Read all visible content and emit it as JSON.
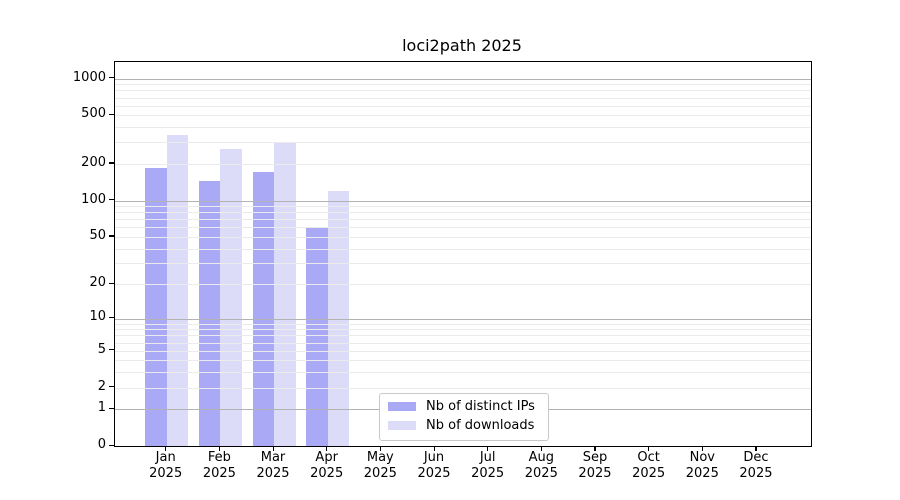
{
  "title": "loci2path 2025",
  "chart_data": {
    "type": "bar",
    "title": "loci2path 2025",
    "categories": [
      "Jan",
      "Feb",
      "Mar",
      "Apr",
      "May",
      "Jun",
      "Jul",
      "Aug",
      "Sep",
      "Oct",
      "Nov",
      "Dec"
    ],
    "category_year": "2025",
    "series": [
      {
        "name": "Nb of distinct IPs",
        "color": "#a9a9f6",
        "values": [
          184,
          145,
          172,
          61,
          0,
          0,
          0,
          0,
          0,
          0,
          0,
          0
        ]
      },
      {
        "name": "Nb of downloads",
        "color": "#dcdcf9",
        "values": [
          348,
          263,
          296,
          120,
          0,
          0,
          0,
          0,
          0,
          0,
          0,
          0
        ]
      }
    ],
    "xlabel": "",
    "ylabel": "",
    "y_scale": "log10(1+v)",
    "y_ticks": [
      0,
      1,
      2,
      5,
      10,
      20,
      50,
      100,
      200,
      500,
      1000
    ],
    "y_major_gridlines": [
      1,
      10,
      100,
      1000
    ],
    "y_minor_gridlines": [
      2,
      3,
      4,
      5,
      6,
      7,
      8,
      9,
      20,
      30,
      40,
      50,
      60,
      70,
      80,
      90,
      200,
      300,
      400,
      500,
      600,
      700,
      800,
      900
    ],
    "ylim": [
      0,
      1380
    ],
    "grid": "on",
    "legend_position": "lower center"
  },
  "colors": {
    "bar_dark": "#a9a9f6",
    "bar_light": "#dcdcf9",
    "grid_major": "#b3b3b3",
    "grid_minor": "#ebebeb",
    "spine": "#000000",
    "text": "#000000"
  }
}
